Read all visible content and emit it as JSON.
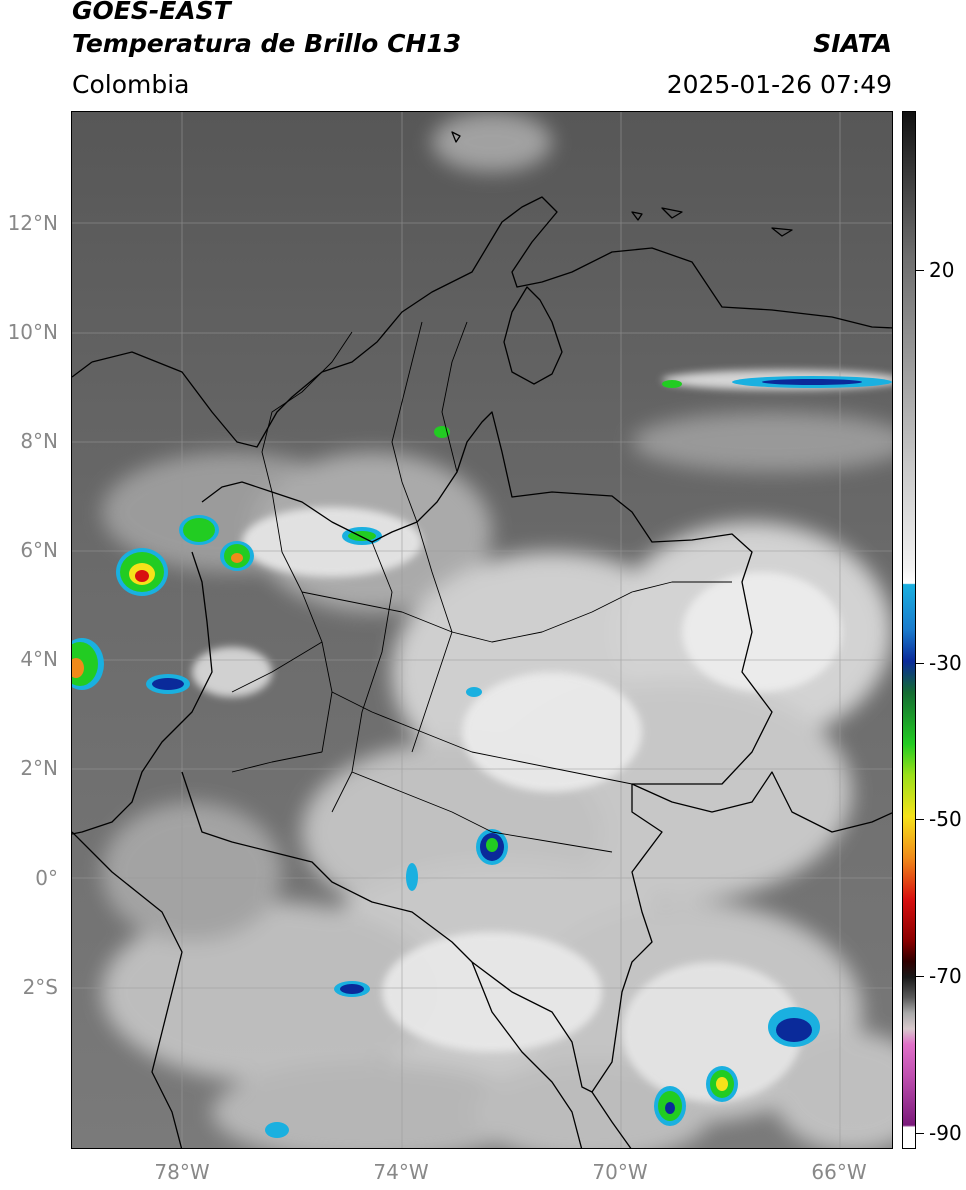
{
  "header": {
    "satellite": "GOES-EAST",
    "product": "Temperatura de Brillo CH13",
    "region": "Colombia",
    "brand": "SIATA",
    "datetime": "2025-01-26 07:49"
  },
  "map": {
    "lat_ticks": [
      "12°N",
      "10°N",
      "8°N",
      "6°N",
      "4°N",
      "2°N",
      "0°",
      "2°S"
    ],
    "lon_ticks": [
      "78°W",
      "74°W",
      "70°W",
      "66°W"
    ],
    "colors": {
      "border": "#000000",
      "gridline": "#9a9a9a",
      "cloud_light": "#e6e6e6",
      "cloud_mid": "#bfbfbf",
      "background_dark": "#5e5e5e"
    }
  },
  "colorbar": {
    "ticks": [
      "20",
      "-30",
      "-50",
      "-70",
      "-90"
    ],
    "colors": {
      "top": "#111111",
      "cyan": "#1ab0e0",
      "blue": "#0a2a9a",
      "green": "#22cc22",
      "yellow": "#f5e21a",
      "orange": "#f08a1a",
      "red": "#d81010",
      "darkred": "#500000",
      "magenta": "#d060c0",
      "purple": "#7a1a7a"
    }
  }
}
